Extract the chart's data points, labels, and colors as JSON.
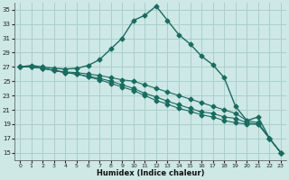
{
  "xlabel": "Humidex (Indice chaleur)",
  "ylabel": "",
  "bg_color": "#cde8e5",
  "grid_color": "#aacfcc",
  "line_color": "#1a6b60",
  "xlim": [
    -0.5,
    23.5
  ],
  "ylim": [
    14,
    36
  ],
  "yticks": [
    15,
    17,
    19,
    21,
    23,
    25,
    27,
    29,
    31,
    33,
    35
  ],
  "xticks": [
    0,
    1,
    2,
    3,
    4,
    5,
    6,
    7,
    8,
    9,
    10,
    11,
    12,
    13,
    14,
    15,
    16,
    17,
    18,
    19,
    20,
    21,
    22,
    23
  ],
  "series": [
    [
      27.0,
      27.2,
      27.0,
      26.8,
      26.7,
      26.8,
      27.2,
      28.0,
      29.5,
      31.0,
      33.5,
      34.2,
      35.5,
      33.5,
      31.5,
      30.2,
      28.5,
      27.3,
      25.5,
      21.5,
      19.5,
      20.0,
      17.0,
      15.0
    ],
    [
      27.0,
      27.0,
      26.8,
      26.5,
      26.3,
      26.2,
      26.0,
      25.8,
      25.5,
      25.2,
      25.0,
      24.5,
      24.0,
      23.5,
      23.0,
      22.5,
      22.0,
      21.5,
      21.0,
      20.5,
      19.5,
      19.2,
      17.0,
      15.0
    ],
    [
      27.0,
      27.0,
      26.8,
      26.5,
      26.2,
      26.0,
      25.7,
      25.4,
      25.0,
      24.5,
      24.0,
      23.3,
      22.8,
      22.2,
      21.7,
      21.2,
      20.7,
      20.5,
      20.0,
      19.8,
      19.2,
      19.0,
      17.0,
      15.0
    ],
    [
      27.0,
      27.0,
      26.8,
      26.5,
      26.2,
      26.0,
      25.6,
      25.2,
      24.7,
      24.2,
      23.7,
      23.0,
      22.3,
      21.8,
      21.2,
      20.8,
      20.3,
      20.0,
      19.5,
      19.2,
      19.0,
      19.0,
      17.0,
      15.0
    ]
  ],
  "figsize": [
    3.2,
    2.0
  ],
  "dpi": 100
}
